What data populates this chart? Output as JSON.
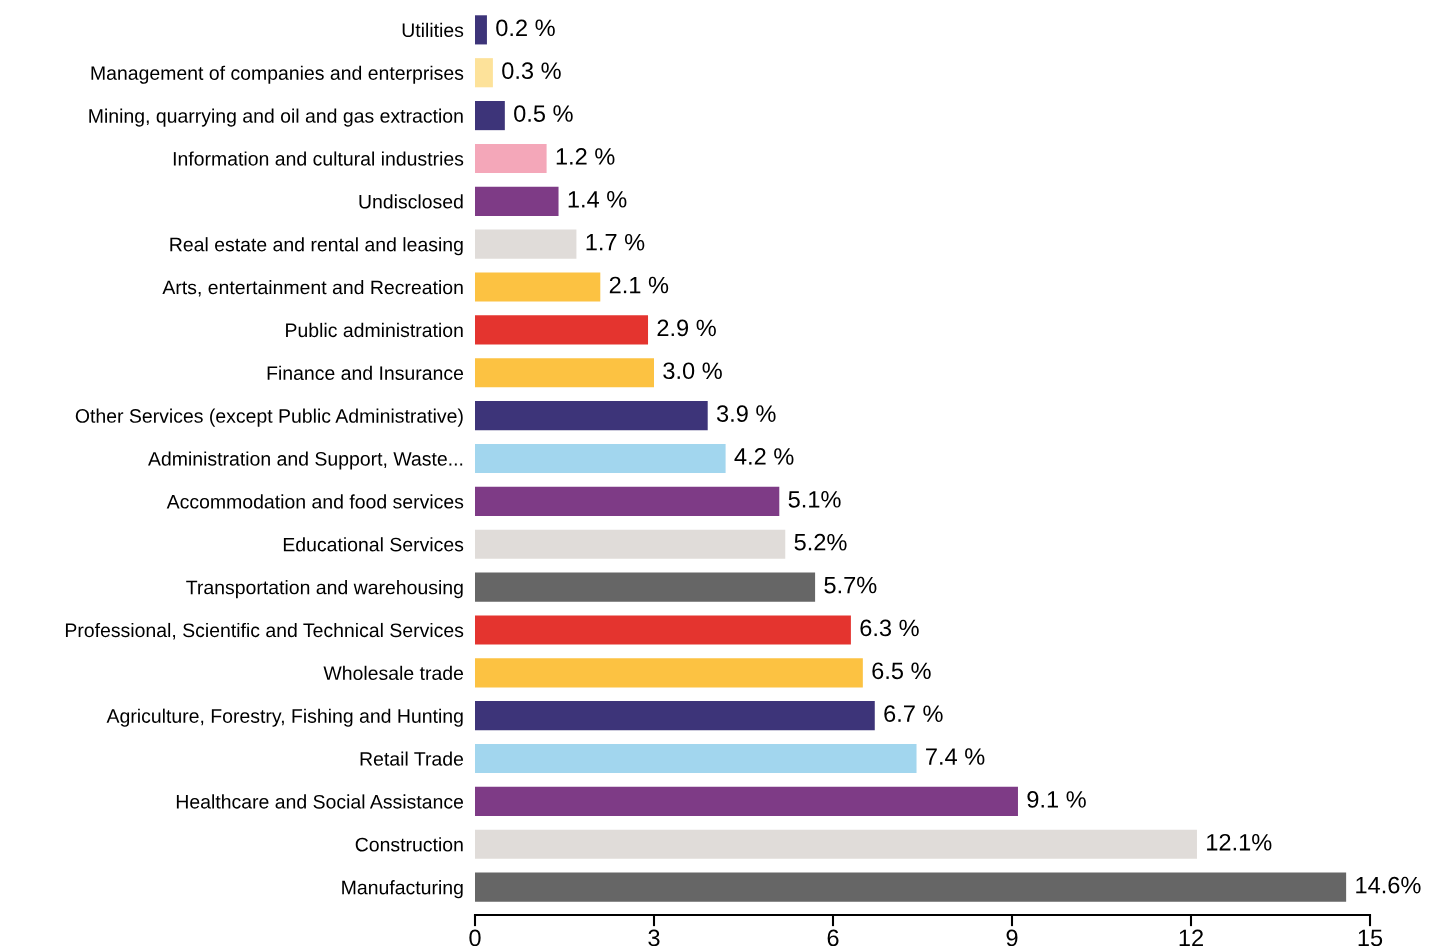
{
  "chart_data": {
    "type": "bar",
    "orientation": "horizontal",
    "categories": [
      "Utilities",
      "Management of companies and enterprises",
      "Mining, quarrying and oil and gas extraction",
      "Information and cultural industries",
      "Undisclosed",
      "Real estate and rental and leasing",
      "Arts, entertainment and Recreation",
      "Public administration",
      "Finance and Insurance",
      "Other Services (except Public Administrative)",
      "Administration and Support, Waste...",
      "Accommodation and food services",
      "Educational Services",
      "Transportation and warehousing",
      "Professional, Scientific and Technical Services",
      "Wholesale trade",
      "Agriculture, Forestry, Fishing and Hunting",
      "Retail Trade",
      "Healthcare and Social Assistance",
      "Construction",
      "Manufacturing"
    ],
    "values": [
      0.2,
      0.3,
      0.5,
      1.2,
      1.4,
      1.7,
      2.1,
      2.9,
      3.0,
      3.9,
      4.2,
      5.1,
      5.2,
      5.7,
      6.3,
      6.5,
      6.7,
      7.4,
      9.1,
      12.1,
      14.6
    ],
    "value_labels": [
      "0.2 %",
      "0.3 %",
      "0.5 %",
      "1.2 %",
      "1.4 %",
      "1.7 %",
      "2.1 %",
      "2.9 %",
      "3.0 %",
      "3.9 %",
      "4.2 %",
      "5.1%",
      "5.2%",
      "5.7%",
      "6.3 %",
      "6.5 %",
      "6.7 %",
      "7.4 %",
      "9.1 %",
      "12.1%",
      "14.6%"
    ],
    "colors": [
      "#3d3479",
      "#fde29a",
      "#3d3479",
      "#f4a7b9",
      "#7e3b86",
      "#e0dcd9",
      "#fcc242",
      "#e4342f",
      "#fcc242",
      "#3d3479",
      "#a2d6ee",
      "#7e3b86",
      "#e0dcd9",
      "#666666",
      "#e4342f",
      "#fcc242",
      "#3d3479",
      "#a2d6ee",
      "#7e3b86",
      "#e0dcd9",
      "#666666"
    ],
    "xlim": [
      0,
      15
    ],
    "xticks": [
      0,
      3,
      6,
      9,
      12,
      15
    ],
    "grid": false,
    "legend": false
  }
}
